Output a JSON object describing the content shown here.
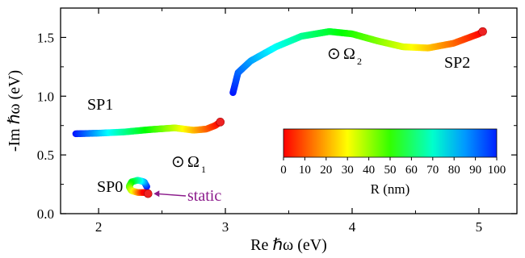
{
  "chart_data": {
    "type": "scatter",
    "xlabel": "Re ℏω (eV)",
    "ylabel": "-Im ℏω (eV)",
    "xlim": [
      1.7,
      5.3
    ],
    "ylim": [
      0.0,
      1.75
    ],
    "xticks": [
      "2",
      "3",
      "4",
      "5"
    ],
    "yticks": [
      "0.0",
      "0.5",
      "1.0",
      "1.5"
    ],
    "grid": false,
    "series": [
      {
        "name": "SP0",
        "label": "SP0",
        "color_by": "R (nm)",
        "points": [
          [
            2.38,
            0.23
          ],
          [
            2.36,
            0.27
          ],
          [
            2.31,
            0.285
          ],
          [
            2.26,
            0.27
          ],
          [
            2.24,
            0.23
          ],
          [
            2.26,
            0.195
          ],
          [
            2.31,
            0.18
          ],
          [
            2.36,
            0.18
          ]
        ],
        "end_point": [
          2.39,
          0.17
        ]
      },
      {
        "name": "SP1",
        "label": "SP1",
        "color_by": "R (nm)",
        "points": [
          [
            1.82,
            0.68
          ],
          [
            2.0,
            0.685
          ],
          [
            2.2,
            0.695
          ],
          [
            2.4,
            0.715
          ],
          [
            2.6,
            0.73
          ],
          [
            2.75,
            0.71
          ],
          [
            2.85,
            0.72
          ],
          [
            2.92,
            0.75
          ],
          [
            2.96,
            0.78
          ]
        ],
        "end_point": [
          2.96,
          0.78
        ]
      },
      {
        "name": "SP2",
        "label": "SP2",
        "color_by": "R (nm)",
        "points": [
          [
            3.06,
            1.03
          ],
          [
            3.1,
            1.2
          ],
          [
            3.2,
            1.3
          ],
          [
            3.4,
            1.42
          ],
          [
            3.6,
            1.51
          ],
          [
            3.82,
            1.55
          ],
          [
            4.0,
            1.53
          ],
          [
            4.2,
            1.47
          ],
          [
            4.4,
            1.42
          ],
          [
            4.6,
            1.41
          ],
          [
            4.8,
            1.45
          ],
          [
            5.0,
            1.53
          ],
          [
            5.03,
            1.55
          ]
        ],
        "end_point": [
          5.03,
          1.55
        ]
      }
    ],
    "annotations": [
      {
        "text": "Ω",
        "subscript": "1",
        "symbol": "⊙",
        "x": 2.62,
        "y": 0.43
      },
      {
        "text": "Ω",
        "subscript": "2",
        "symbol": "⊙",
        "x": 3.83,
        "y": 1.32
      },
      {
        "text": "static",
        "arrow_to": [
          2.39,
          0.17
        ],
        "color": "#8b1a8b"
      }
    ],
    "colorbar": {
      "title": "R (nm)",
      "range": [
        0,
        100
      ],
      "ticks": [
        "0",
        "10",
        "20",
        "30",
        "40",
        "50",
        "60",
        "70",
        "80",
        "90",
        "100"
      ],
      "colormap": [
        "#ff0000",
        "#ff8800",
        "#ffff00",
        "#00ff00",
        "#00ffff",
        "#0060ff",
        "#0000ff"
      ]
    },
    "end_marker_color": "#ee2222"
  }
}
